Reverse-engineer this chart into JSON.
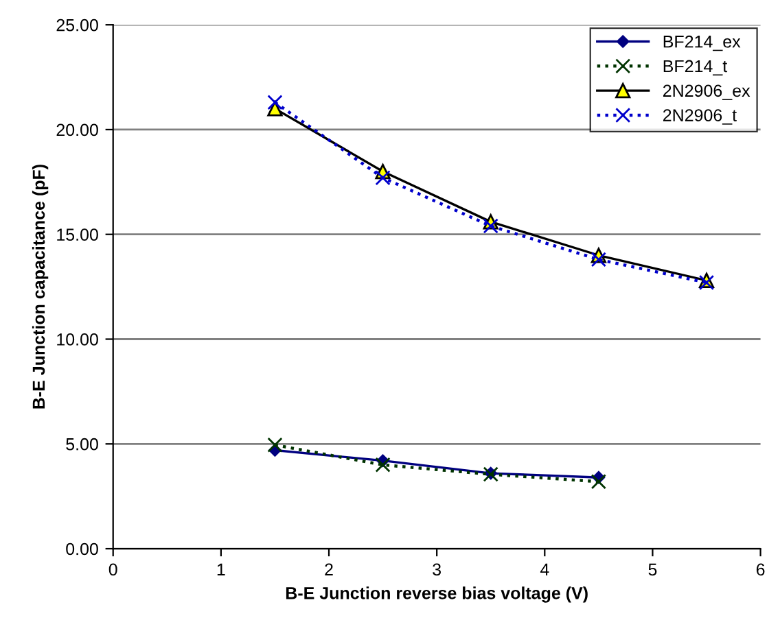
{
  "chart_data": {
    "type": "line",
    "xlabel": "B-E Junction reverse bias voltage (V)",
    "ylabel": "B-E Junction capacitance (pF)",
    "xlim": [
      0,
      6
    ],
    "xticks": [
      0,
      1,
      2,
      3,
      4,
      5,
      6
    ],
    "ylim": [
      0,
      25
    ],
    "yticks": [
      {
        "value": 0,
        "label": "0.00"
      },
      {
        "value": 5,
        "label": "5.00"
      },
      {
        "value": 10,
        "label": "10.00"
      },
      {
        "value": 15,
        "label": "15.00"
      },
      {
        "value": 20,
        "label": "20.00"
      },
      {
        "value": 25,
        "label": "25.00"
      }
    ],
    "grid": "y",
    "legend": "top right",
    "series": [
      {
        "name": "BF214_ex",
        "color": "#000080",
        "marker": "diamond",
        "line_style": "solid",
        "x": [
          1.5,
          2.5,
          3.5,
          4.5
        ],
        "values": [
          4.7,
          4.2,
          3.6,
          3.4
        ]
      },
      {
        "name": "BF214_t",
        "color": "#003300",
        "marker": "cross",
        "line_style": "dotted",
        "x": [
          1.5,
          2.5,
          3.5,
          4.5
        ],
        "values": [
          4.95,
          4.0,
          3.55,
          3.2
        ]
      },
      {
        "name": "2N2906_ex",
        "color": "#000000",
        "marker": "triangle",
        "line_style": "solid",
        "x": [
          1.5,
          2.5,
          3.5,
          4.5,
          5.5
        ],
        "values": [
          21.0,
          18.0,
          15.6,
          14.0,
          12.8
        ]
      },
      {
        "name": "2N2906_t",
        "color": "#0000cc",
        "marker": "cross",
        "line_style": "dotted",
        "x": [
          1.5,
          2.5,
          3.5,
          4.5,
          5.5
        ],
        "values": [
          21.3,
          17.7,
          15.4,
          13.8,
          12.7
        ]
      }
    ]
  }
}
